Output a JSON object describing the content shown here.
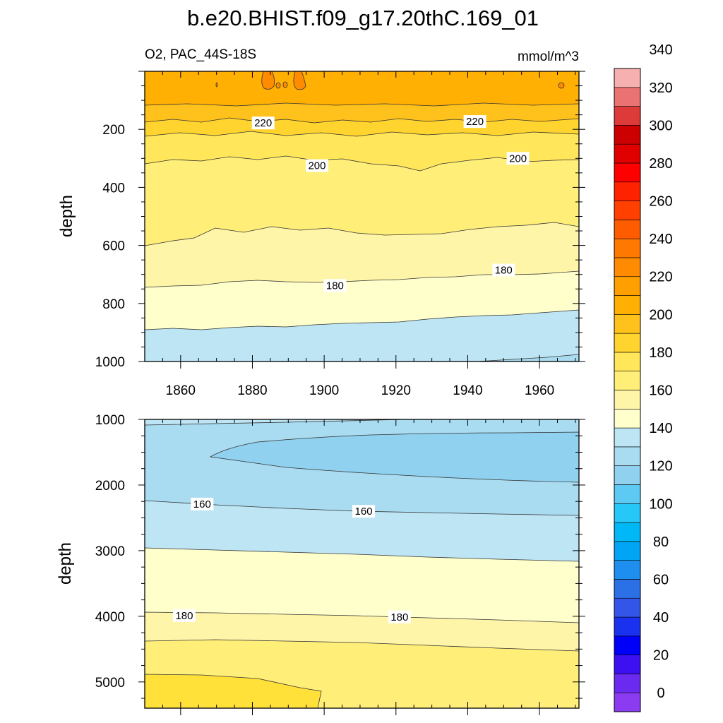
{
  "chart_data": {
    "title": "b.e20.BHIST.f09_g17.20thC.169_01",
    "colors": {
      "ramp": [
        "#8c3cf0",
        "#6a2af0",
        "#3c10f0",
        "#0000f8",
        "#1a32f0",
        "#3456e8",
        "#2c70e6",
        "#1e8eef",
        "#00a6f3",
        "#00b8f6",
        "#26c8f8",
        "#5ecaf4",
        "#90d1ef",
        "#a9dbf1",
        "#bde5f4",
        "#ffffcc",
        "#fff5a8",
        "#ffee78",
        "#ffe65a",
        "#ffd42e",
        "#ffc21c",
        "#ffb003",
        "#ffa000",
        "#ff8c00",
        "#ff7800",
        "#ff5c00",
        "#ff4000",
        "#ff2200",
        "#ff0000",
        "#e00000",
        "#cc0000",
        "#dd3a3a",
        "#ea7272",
        "#f7b0b0"
      ]
    },
    "colorbar": {
      "type": "colorbar",
      "levels": [
        0,
        10,
        20,
        30,
        40,
        50,
        60,
        70,
        80,
        90,
        100,
        110,
        120,
        130,
        140,
        150,
        160,
        170,
        180,
        190,
        200,
        210,
        220,
        230,
        240,
        250,
        260,
        270,
        280,
        290,
        300,
        310,
        320,
        330,
        340,
        350
      ],
      "tick_labels": [
        "0",
        "20",
        "40",
        "60",
        "80",
        "100",
        "120",
        "140",
        "160",
        "180",
        "200",
        "220",
        "240",
        "260",
        "280",
        "300",
        "320",
        "340"
      ]
    },
    "panels": [
      {
        "type": "heatmap",
        "left_label": "O2, PAC_44S-18S",
        "right_label": "mmol/m^3",
        "ylabel": "depth",
        "xlim": [
          1850,
          1971
        ],
        "ylim": [
          0,
          1000
        ],
        "x_ticks": [
          "1860",
          "1880",
          "1900",
          "1920",
          "1940",
          "1960"
        ],
        "y_ticks": [
          "200",
          "400",
          "600",
          "800",
          "1000"
        ],
        "contour_labels": [
          {
            "text": "220",
            "x": 1883,
            "depth": 178
          },
          {
            "text": "220",
            "x": 1942,
            "depth": 173
          },
          {
            "text": "200",
            "x": 1898,
            "depth": 325
          },
          {
            "text": "200",
            "x": 1954,
            "depth": 300
          },
          {
            "text": "180",
            "x": 1903,
            "depth": 738
          },
          {
            "text": "180",
            "x": 1950,
            "depth": 685
          }
        ]
      },
      {
        "type": "heatmap",
        "ylabel": "depth",
        "xlim": [
          1850,
          1971
        ],
        "ylim": [
          1000,
          5400
        ],
        "y_ticks": [
          "1000",
          "2000",
          "3000",
          "4000",
          "5000"
        ],
        "contour_labels": [
          {
            "text": "160",
            "x": 1866,
            "depth": 2290
          },
          {
            "text": "160",
            "x": 1911,
            "depth": 2400
          },
          {
            "text": "180",
            "x": 1861,
            "depth": 3990
          },
          {
            "text": "180",
            "x": 1921,
            "depth": 4010
          }
        ]
      }
    ]
  }
}
